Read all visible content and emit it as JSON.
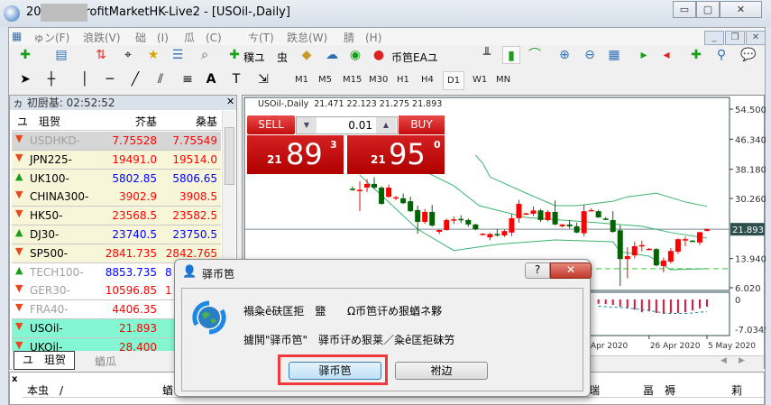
{
  "window": {
    "title": "20          ProfitMarketHK-Live2 - [USOil-,Daily]",
    "min": "▭",
    "max": "▢",
    "close": "✕"
  },
  "menu": [
    "ゅン(F)",
    "浪跌(V)",
    "础　(I)",
    "瓜　(C)",
    "ㄘ(T)",
    "跌怠(W)",
    "腈　(H)"
  ],
  "toolbar": {
    "new_order": "穙ユ",
    "history": "虫",
    "auto_trading": "币笆EAユ"
  },
  "timeframes": [
    "M1",
    "M5",
    "M15",
    "M30",
    "H1",
    "H4",
    "D1",
    "W1",
    "MN"
  ],
  "timeframe_selected": "D1",
  "market_watch": {
    "title": "ヵ 初厨基: 02:52:52",
    "headers": [
      "ユ　珇贺",
      "芥基",
      "桑基"
    ],
    "rows": [
      {
        "symbol": "USDHKD-",
        "bid": "7.75528",
        "ask": "7.75549",
        "dir": "down",
        "bg": "#d6d6d6",
        "name_color": "#a0a0a0",
        "price_color": "#ff0000"
      },
      {
        "symbol": "JPN225-",
        "bid": "19491.0",
        "ask": "19514.0",
        "dir": "down",
        "bg": "#f7f6d8",
        "name_color": "#000000",
        "price_color": "#ff0000"
      },
      {
        "symbol": "UK100-",
        "bid": "5802.85",
        "ask": "5806.65",
        "dir": "up",
        "bg": "#f7f6d8",
        "name_color": "#000000",
        "price_color": "#0000ff"
      },
      {
        "symbol": "CHINA300-",
        "bid": "3902.9",
        "ask": "3908.5",
        "dir": "down",
        "bg": "#f7f6d8",
        "name_color": "#000000",
        "price_color": "#ff0000"
      },
      {
        "symbol": "HK50-",
        "bid": "23568.5",
        "ask": "23582.5",
        "dir": "down",
        "bg": "#f7f6d8",
        "name_color": "#000000",
        "price_color": "#ff0000"
      },
      {
        "symbol": "DJ30-",
        "bid": "23740.5",
        "ask": "23750.5",
        "dir": "up",
        "bg": "#f7f6d8",
        "name_color": "#000000",
        "price_color": "#0000ff"
      },
      {
        "symbol": "SP500-",
        "bid": "2841.735",
        "ask": "2842.765",
        "dir": "down",
        "bg": "#f7f6d8",
        "name_color": "#000000",
        "price_color": "#ff0000"
      },
      {
        "symbol": "TECH100-",
        "bid": "8853.735",
        "ask": "8",
        "dir": "up",
        "bg": "#ffffff",
        "name_color": "#a0a0a0",
        "price_color": "#0000ff"
      },
      {
        "symbol": "GER30-",
        "bid": "10596.85",
        "ask": "1",
        "dir": "down",
        "bg": "#ffffff",
        "name_color": "#a0a0a0",
        "price_color": "#ff0000"
      },
      {
        "symbol": "FRA40-",
        "bid": "4406.35",
        "ask": "",
        "dir": "down",
        "bg": "#ffffff",
        "name_color": "#a0a0a0",
        "price_color": "#ff0000"
      },
      {
        "symbol": "USOil-",
        "bid": "21.893",
        "ask": "",
        "dir": "down",
        "bg": "#84f7d2",
        "name_color": "#000000",
        "price_color": "#ff0000"
      },
      {
        "symbol": "UKOil-",
        "bid": "28.400",
        "ask": "",
        "dir": "down",
        "bg": "#84f7d2",
        "name_color": "#000000",
        "price_color": "#ff0000"
      }
    ],
    "tabs": [
      "ユ　珇贺",
      "蝤瓜"
    ]
  },
  "trade_panel": {
    "sell": "SELL",
    "buy": "BUY",
    "lot": "0.01",
    "sell_big": "21",
    "sell_main": "89",
    "sell_sup": "3",
    "buy_big": "21",
    "buy_main": "95",
    "buy_sup": "0"
  },
  "chart_data": {
    "type": "candlestick",
    "header": "USOil-,Daily  21.471 22.123 21.275 21.893",
    "up_color": "#ff0000",
    "down_color": "#006400",
    "band_color": "#3cb371",
    "ylim": [
      6.02,
      54.5
    ],
    "yticks": [
      "54.500",
      "46.340",
      "38.180",
      "30.260",
      "13.940",
      "6.020"
    ],
    "current_price": "21.893",
    "horizontal_level": 11.2,
    "candles": [
      [
        32.9,
        33.5,
        32.4,
        32.6
      ],
      [
        32.3,
        34.9,
        26.8,
        32.6
      ],
      [
        33.2,
        35.5,
        32.0,
        34.2
      ],
      [
        34.2,
        36.0,
        32.8,
        33.2
      ],
      [
        33.2,
        33.6,
        28.5,
        28.8
      ],
      [
        30.7,
        34.0,
        30.4,
        33.2
      ],
      [
        30.4,
        30.9,
        29.8,
        30.6
      ],
      [
        30.3,
        31.6,
        28.7,
        29.0
      ],
      [
        29.5,
        30.7,
        26.6,
        26.8
      ],
      [
        27.1,
        28.3,
        20.7,
        23.9
      ],
      [
        23.9,
        27.4,
        23.4,
        26.6
      ],
      [
        26.6,
        28.5,
        22.6,
        22.9
      ],
      [
        21.2,
        21.8,
        20.6,
        21.7
      ],
      [
        21.7,
        24.8,
        21.5,
        24.4
      ],
      [
        24.4,
        25.4,
        23.3,
        24.6
      ],
      [
        24.7,
        25.7,
        23.6,
        24.5
      ],
      [
        24.4,
        24.8,
        22.6,
        23.2
      ],
      [
        23.2,
        23.4,
        21.6,
        21.9
      ],
      [
        20.5,
        20.8,
        20.2,
        20.7
      ],
      [
        19.7,
        20.9,
        18.9,
        20.6
      ],
      [
        20.6,
        22.0,
        19.9,
        20.2
      ],
      [
        20.2,
        21.8,
        19.8,
        21.4
      ],
      [
        21.0,
        26.0,
        20.0,
        24.9
      ],
      [
        24.9,
        29.9,
        23.7,
        28.8
      ],
      [
        26.0,
        26.4,
        25.8,
        26.2
      ],
      [
        26.1,
        28.1,
        25.5,
        27.0
      ],
      [
        27.0,
        27.4,
        23.9,
        24.4
      ],
      [
        24.4,
        27.1,
        24.0,
        26.6
      ],
      [
        26.6,
        29.7,
        23.0,
        23.2
      ],
      [
        22.7,
        23.3,
        22.4,
        23.2
      ],
      [
        23.2,
        24.4,
        22.1,
        22.7
      ],
      [
        22.7,
        23.7,
        20.8,
        21.0
      ],
      [
        20.8,
        28.5,
        19.9,
        26.8
      ],
      [
        27.1,
        27.6,
        26.8,
        27.1
      ],
      [
        26.8,
        27.2,
        25.0,
        25.1
      ],
      [
        24.8,
        25.2,
        24.4,
        24.6
      ],
      [
        24.4,
        26.8,
        20.9,
        21.2
      ],
      [
        21.6,
        23.0,
        6.5,
        13.8
      ],
      [
        13.8,
        17.0,
        8.6,
        14.6
      ],
      [
        14.8,
        18.5,
        14.0,
        17.3
      ],
      [
        17.3,
        18.8,
        15.9,
        17.6
      ],
      [
        16.4,
        16.8,
        16.2,
        16.6
      ],
      [
        16.5,
        16.8,
        11.8,
        12.1
      ],
      [
        11.9,
        14.2,
        10.2,
        13.4
      ],
      [
        13.1,
        16.8,
        12.6,
        16.0
      ],
      [
        15.8,
        19.4,
        15.2,
        19.2
      ],
      [
        19.0,
        19.9,
        17.3,
        19.2
      ],
      [
        18.8,
        19.0,
        18.5,
        18.6
      ],
      [
        18.3,
        21.2,
        17.6,
        21.1
      ],
      [
        21.471,
        22.123,
        21.275,
        21.893
      ]
    ],
    "bands": {
      "upper": [
        [
          17,
          42.0
        ],
        [
          18,
          39.8
        ],
        [
          19,
          36.1
        ],
        [
          24,
          31.7
        ],
        [
          28,
          28.3
        ],
        [
          31,
          28.3
        ],
        [
          36,
          29.5
        ],
        [
          38,
          30.7
        ],
        [
          42,
          31.7
        ],
        [
          46,
          29.3
        ],
        [
          49,
          28.1
        ]
      ],
      "middle": [
        [
          9,
          38.6
        ],
        [
          11,
          36.6
        ],
        [
          14,
          33.7
        ],
        [
          17.5,
          28.3
        ],
        [
          24,
          25.1
        ],
        [
          31,
          24.1
        ],
        [
          40,
          22.7
        ],
        [
          44,
          21.0
        ],
        [
          49,
          19.5
        ]
      ],
      "lower": [
        [
          1,
          36.6
        ],
        [
          9,
          21.9
        ],
        [
          14,
          16.1
        ],
        [
          20,
          17.8
        ],
        [
          28,
          19.0
        ],
        [
          36,
          18.5
        ],
        [
          37,
          15.8
        ],
        [
          41,
          14.6
        ],
        [
          44,
          10.9
        ],
        [
          49,
          11.2
        ]
      ]
    },
    "macd": {
      "yticks": [
        "0",
        "-7.0345"
      ],
      "ylim": [
        -7.0345,
        0
      ],
      "start": 34,
      "histogram": [
        -1.0,
        -1.1,
        -1.3,
        -1.7,
        -2.1,
        -2.4,
        -3.0,
        -2.8,
        -3.2,
        -3.4,
        -3.2,
        -3.2,
        -3.0,
        -2.6,
        -2.1,
        -1.7
      ],
      "signal": [
        -1.6,
        -1.7,
        -1.8,
        -1.9,
        -2.0,
        -2.2,
        -2.4,
        -2.6,
        -2.9,
        -3.2,
        -3.3,
        -3.3,
        -3.3,
        -3.2,
        -3.0,
        -2.9
      ],
      "hist_color": "#dc143c",
      "signal_color": "#008b8b"
    },
    "xticks": [
      {
        "label": "16 Apr 2020",
        "at": 31
      },
      {
        "label": "26 Apr 2020",
        "at": 41
      },
      {
        "label": "5 May 2020",
        "at": 49
      }
    ]
  },
  "dialog": {
    "title": "驿币笆",
    "help": "?",
    "close": "✕",
    "line1a": "褟粂ē砆匡拒　盬",
    "line1b": "Ω币笆讦め狠蝤ネ夥",
    "line2": "攄鬨\"驿币笆\"　驿币讦め狠莱／粂ē匡拒砞竻",
    "ok": "驿币笆",
    "cancel": "祔边"
  },
  "terminal": {
    "close": "x",
    "columns": [
      "本虫　/",
      "蝤",
      "瑞",
      "畐　褥",
      "莉"
    ]
  }
}
